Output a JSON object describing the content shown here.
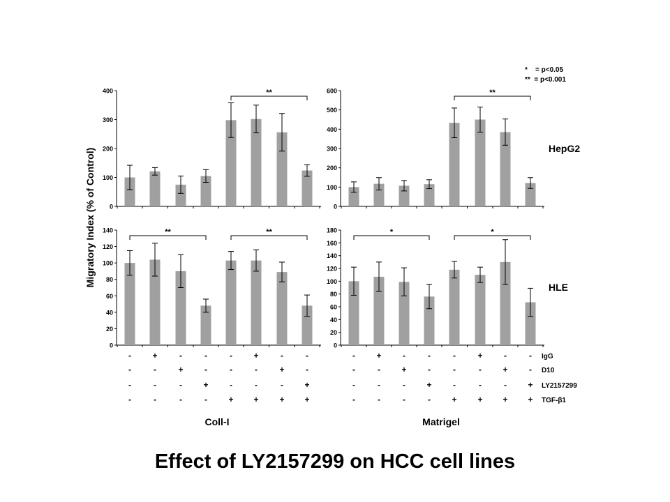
{
  "slide_title": "Effect of LY2157299 on HCC cell lines",
  "y_axis_label": "Migratory Index (% of Control)",
  "significance_legend": [
    "*    = p<0.05",
    "**  = p<0.001"
  ],
  "treatment_rows": [
    {
      "label": "IgG",
      "signs": [
        "-",
        "+",
        "-",
        "-",
        "-",
        "+",
        "-",
        "-"
      ]
    },
    {
      "label": "D10",
      "signs": [
        "-",
        "-",
        "+",
        "-",
        "-",
        "-",
        "+",
        "-"
      ]
    },
    {
      "label": "LY2157299",
      "signs": [
        "-",
        "-",
        "-",
        "+",
        "-",
        "-",
        "-",
        "+"
      ]
    },
    {
      "label": "TGF-β1",
      "signs": [
        "-",
        "-",
        "-",
        "-",
        "+",
        "+",
        "+",
        "+"
      ]
    }
  ],
  "column_labels": [
    "Coll-I",
    "Matrigel"
  ],
  "row_labels": [
    "HepG2",
    "HLE"
  ],
  "bar_color": "#a0a0a0",
  "chart_data": [
    {
      "type": "bar",
      "cell_line": "HepG2",
      "substrate": "Coll-I",
      "ylim": [
        0,
        400
      ],
      "yticks": [
        0,
        100,
        200,
        300,
        400
      ],
      "values": [
        100,
        121,
        75,
        105,
        298,
        302,
        256,
        124
      ],
      "errors": [
        42,
        13,
        30,
        22,
        60,
        48,
        65,
        20
      ],
      "brackets": [
        {
          "from": 4,
          "to": 7,
          "label": "**"
        }
      ]
    },
    {
      "type": "bar",
      "cell_line": "HepG2",
      "substrate": "Matrigel",
      "ylim": [
        0,
        600
      ],
      "yticks": [
        0,
        100,
        200,
        300,
        400,
        500,
        600
      ],
      "values": [
        100,
        117,
        107,
        115,
        433,
        450,
        385,
        121
      ],
      "errors": [
        27,
        32,
        27,
        23,
        77,
        65,
        68,
        28
      ],
      "brackets": [
        {
          "from": 4,
          "to": 7,
          "label": "**"
        }
      ]
    },
    {
      "type": "bar",
      "cell_line": "HLE",
      "substrate": "Coll-I",
      "ylim": [
        0,
        140
      ],
      "yticks": [
        0,
        20,
        40,
        60,
        80,
        100,
        120,
        140
      ],
      "values": [
        100,
        104,
        90,
        48,
        103,
        103,
        89,
        48
      ],
      "errors": [
        15,
        20,
        20,
        8,
        11,
        13,
        12,
        13
      ],
      "brackets": [
        {
          "from": 0,
          "to": 3,
          "label": "**"
        },
        {
          "from": 4,
          "to": 7,
          "label": "**"
        }
      ]
    },
    {
      "type": "bar",
      "cell_line": "HLE",
      "substrate": "Matrigel",
      "ylim": [
        0,
        180
      ],
      "yticks": [
        0,
        20,
        40,
        60,
        80,
        100,
        120,
        140,
        160,
        180
      ],
      "values": [
        100,
        107,
        99,
        76,
        118,
        110,
        130,
        67
      ],
      "errors": [
        22,
        23,
        22,
        19,
        13,
        12,
        35,
        22
      ],
      "brackets": [
        {
          "from": 0,
          "to": 3,
          "label": "*"
        },
        {
          "from": 4,
          "to": 7,
          "label": "*"
        }
      ]
    }
  ]
}
